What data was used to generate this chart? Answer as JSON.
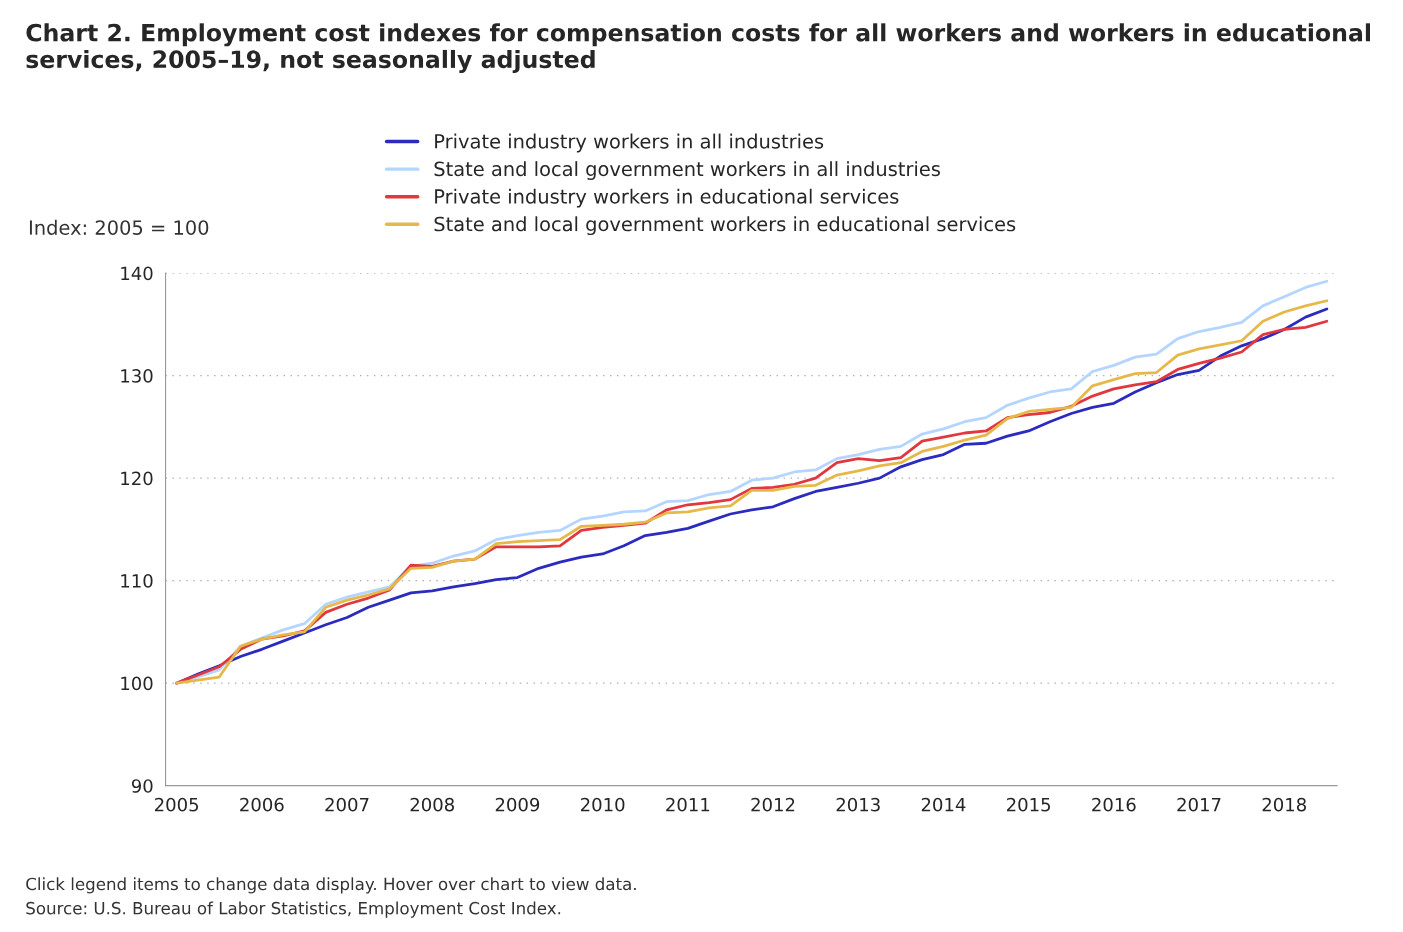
{
  "chart_data": {
    "type": "line",
    "title": "Chart 2. Employment cost indexes for compensation costs for all workers and workers in educational services, 2005–19, not seasonally adjusted",
    "ylabel": "Index: 2005 = 100",
    "x": [
      2005.0,
      2005.25,
      2005.5,
      2005.75,
      2006.0,
      2006.25,
      2006.5,
      2006.75,
      2007.0,
      2007.25,
      2007.5,
      2007.75,
      2008.0,
      2008.25,
      2008.5,
      2008.75,
      2009.0,
      2009.25,
      2009.5,
      2009.75,
      2010.0,
      2010.25,
      2010.5,
      2010.75,
      2011.0,
      2011.25,
      2011.5,
      2011.75,
      2012.0,
      2012.25,
      2012.5,
      2012.75,
      2013.0,
      2013.25,
      2013.5,
      2013.75,
      2014.0,
      2014.25,
      2014.5,
      2014.75,
      2015.0,
      2015.25,
      2015.5,
      2015.75,
      2016.0,
      2016.25,
      2016.5,
      2016.75,
      2017.0,
      2017.25,
      2017.5,
      2017.75,
      2018.0,
      2018.25,
      2018.5
    ],
    "series": [
      {
        "name": "Private industry workers in all industries",
        "color": "#2b2bbf",
        "values": [
          100,
          100.9,
          101.7,
          102.6,
          103.3,
          104.1,
          104.9,
          105.7,
          106.4,
          107.4,
          108.1,
          108.8,
          109.0,
          109.4,
          109.7,
          110.1,
          110.3,
          111.2,
          111.8,
          112.3,
          112.6,
          113.4,
          114.4,
          114.7,
          115.1,
          115.8,
          116.5,
          116.9,
          117.2,
          118.0,
          118.7,
          119.1,
          119.5,
          120.0,
          121.1,
          121.8,
          122.3,
          123.3,
          123.4,
          124.1,
          124.6,
          125.5,
          126.3,
          126.9,
          127.3,
          128.4,
          129.3,
          130.1,
          130.5,
          131.9,
          132.9,
          133.6,
          134.5,
          135.7,
          136.5
        ]
      },
      {
        "name": "State and local government workers in all industries",
        "color": "#b3d5ff",
        "values": [
          100,
          100.6,
          101.3,
          103.6,
          104.4,
          105.2,
          105.8,
          107.7,
          108.4,
          108.9,
          109.4,
          111.4,
          111.7,
          112.4,
          112.9,
          114.0,
          114.4,
          114.7,
          114.9,
          116.0,
          116.3,
          116.7,
          116.8,
          117.7,
          117.8,
          118.4,
          118.7,
          119.8,
          120.0,
          120.6,
          120.8,
          121.9,
          122.3,
          122.8,
          123.1,
          124.3,
          124.8,
          125.5,
          125.9,
          127.1,
          127.8,
          128.4,
          128.7,
          130.4,
          131.0,
          131.8,
          132.1,
          133.6,
          134.3,
          134.7,
          135.2,
          136.8,
          137.7,
          138.6,
          139.2
        ]
      },
      {
        "name": "Private industry workers in educational services",
        "color": "#e0383e",
        "values": [
          100,
          100.8,
          101.6,
          103.3,
          104.3,
          104.6,
          105.1,
          106.9,
          107.7,
          108.3,
          109.1,
          111.5,
          111.4,
          111.9,
          112.1,
          113.3,
          113.3,
          113.3,
          113.4,
          114.9,
          115.2,
          115.4,
          115.6,
          116.9,
          117.4,
          117.6,
          117.9,
          119.0,
          119.1,
          119.4,
          120.0,
          121.5,
          121.9,
          121.7,
          122.0,
          123.6,
          124.0,
          124.4,
          124.6,
          125.9,
          126.2,
          126.4,
          127.0,
          128.0,
          128.7,
          129.1,
          129.4,
          130.6,
          131.2,
          131.7,
          132.3,
          134.0,
          134.5,
          134.7,
          135.3
        ]
      },
      {
        "name": "State and local government workers in educational services",
        "color": "#e6b84a",
        "values": [
          100,
          100.3,
          100.6,
          103.6,
          104.3,
          104.7,
          105.0,
          107.4,
          108.1,
          108.6,
          109.2,
          111.2,
          111.3,
          111.9,
          112.1,
          113.6,
          113.8,
          113.9,
          114.0,
          115.3,
          115.4,
          115.5,
          115.7,
          116.6,
          116.7,
          117.1,
          117.3,
          118.8,
          118.8,
          119.2,
          119.3,
          120.3,
          120.7,
          121.2,
          121.5,
          122.6,
          123.1,
          123.7,
          124.2,
          125.8,
          126.5,
          126.7,
          126.9,
          129.0,
          129.6,
          130.2,
          130.3,
          132.0,
          132.6,
          133.0,
          133.4,
          135.3,
          136.2,
          136.8,
          137.3
        ]
      }
    ],
    "xlim": [
      2004.87,
      2018.62
    ],
    "xticks": [
      2005,
      2006,
      2007,
      2008,
      2009,
      2010,
      2011,
      2012,
      2013,
      2014,
      2015,
      2016,
      2017,
      2018
    ],
    "ylim": [
      90,
      140
    ],
    "yticks": [
      90,
      100,
      110,
      120,
      130,
      140
    ],
    "grid": "y",
    "legend": "top",
    "marker": "none",
    "line_style": "solid",
    "annotations": [
      "Click legend items to change data display. Hover over chart to view data.",
      "Source: U.S. Bureau of Labor Statistics, Employment Cost Index."
    ]
  }
}
